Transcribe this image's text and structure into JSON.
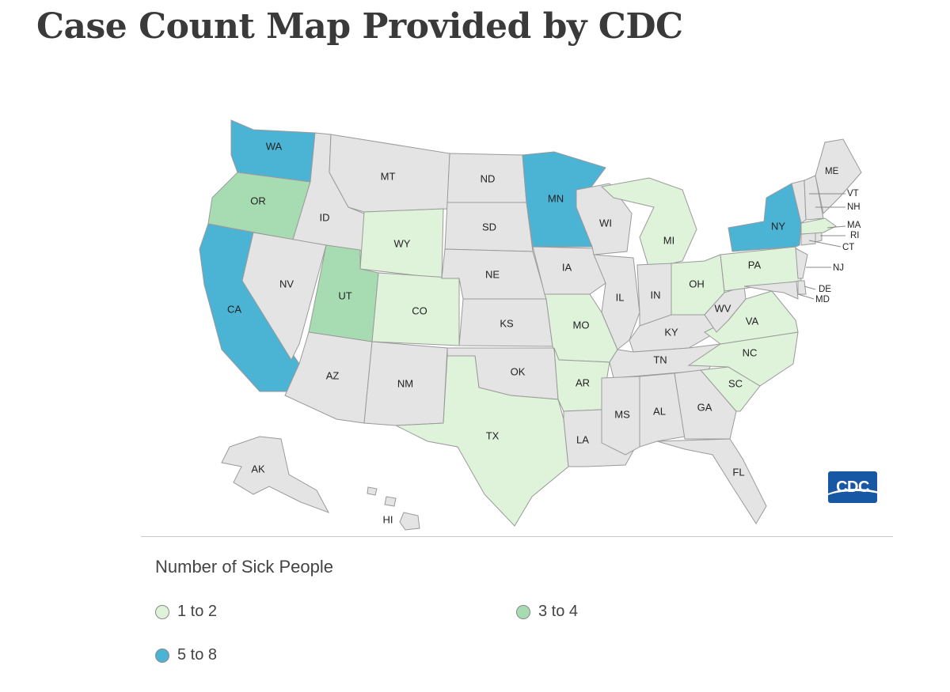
{
  "heading": "Case Count Map Provided by CDC",
  "logo_text": "CDC",
  "legend": {
    "title": "Number of Sick People",
    "items": [
      {
        "label": "1 to 2",
        "color": "#dff2da"
      },
      {
        "label": "3 to 4",
        "color": "#a7dcb2"
      },
      {
        "label": "5 to 8",
        "color": "#4bb3d4"
      }
    ]
  },
  "colors": {
    "no_cases": "#e4e4e4",
    "border": "#9a9a9a"
  },
  "states": {
    "WA": {
      "label": "WA",
      "level": 3
    },
    "OR": {
      "label": "OR",
      "level": 2
    },
    "CA": {
      "label": "CA",
      "level": 3
    },
    "ID": {
      "label": "ID",
      "level": 0
    },
    "NV": {
      "label": "NV",
      "level": 0
    },
    "MT": {
      "label": "MT",
      "level": 0
    },
    "WY": {
      "label": "WY",
      "level": 1
    },
    "UT": {
      "label": "UT",
      "level": 2
    },
    "AZ": {
      "label": "AZ",
      "level": 0
    },
    "CO": {
      "label": "CO",
      "level": 1
    },
    "NM": {
      "label": "NM",
      "level": 0
    },
    "ND": {
      "label": "ND",
      "level": 0
    },
    "SD": {
      "label": "SD",
      "level": 0
    },
    "NE": {
      "label": "NE",
      "level": 0
    },
    "KS": {
      "label": "KS",
      "level": 0
    },
    "OK": {
      "label": "OK",
      "level": 0
    },
    "TX": {
      "label": "TX",
      "level": 1
    },
    "MN": {
      "label": "MN",
      "level": 3
    },
    "IA": {
      "label": "IA",
      "level": 0
    },
    "MO": {
      "label": "MO",
      "level": 1
    },
    "AR": {
      "label": "AR",
      "level": 1
    },
    "LA": {
      "label": "LA",
      "level": 0
    },
    "WI": {
      "label": "WI",
      "level": 0
    },
    "IL": {
      "label": "IL",
      "level": 0
    },
    "MI": {
      "label": "MI",
      "level": 1
    },
    "IN": {
      "label": "IN",
      "level": 0
    },
    "OH": {
      "label": "OH",
      "level": 1
    },
    "KY": {
      "label": "KY",
      "level": 0
    },
    "TN": {
      "label": "TN",
      "level": 0
    },
    "MS": {
      "label": "MS",
      "level": 0
    },
    "AL": {
      "label": "AL",
      "level": 0
    },
    "GA": {
      "label": "GA",
      "level": 0
    },
    "FL": {
      "label": "FL",
      "level": 0
    },
    "SC": {
      "label": "SC",
      "level": 1
    },
    "NC": {
      "label": "NC",
      "level": 1
    },
    "VA": {
      "label": "VA",
      "level": 1
    },
    "WV": {
      "label": "WV",
      "level": 0
    },
    "PA": {
      "label": "PA",
      "level": 1
    },
    "NY": {
      "label": "NY",
      "level": 3
    },
    "NJ": {
      "label": "NJ",
      "level": 0
    },
    "DE": {
      "label": "DE",
      "level": 0
    },
    "MD": {
      "label": "MD",
      "level": 0
    },
    "CT": {
      "label": "CT",
      "level": 0
    },
    "RI": {
      "label": "RI",
      "level": 0
    },
    "MA": {
      "label": "MA",
      "level": 1
    },
    "VT": {
      "label": "VT",
      "level": 0
    },
    "NH": {
      "label": "NH",
      "level": 0
    },
    "ME": {
      "label": "ME",
      "level": 0
    },
    "AK": {
      "label": "AK",
      "level": 0
    },
    "HI": {
      "label": "HI",
      "level": 0
    }
  }
}
